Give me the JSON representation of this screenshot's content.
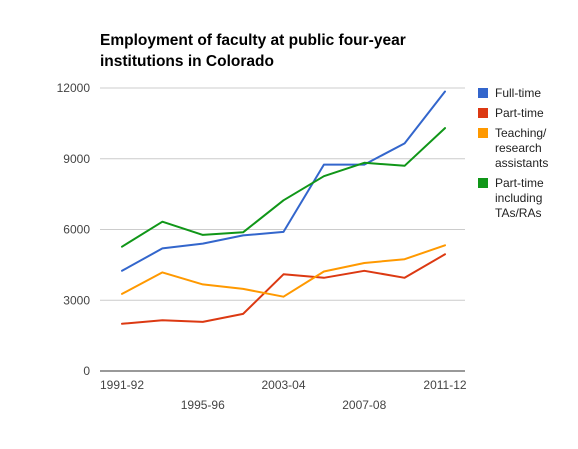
{
  "chart_data": {
    "type": "line",
    "title": "Employment of faculty at public four-year institutions in Colorado",
    "xlabel": "",
    "ylabel": "",
    "ylim": [
      0,
      12000
    ],
    "yticks": [
      "0",
      "3000",
      "6000",
      "9000",
      "12000"
    ],
    "x_tick_labels": [
      "1991-92",
      "1995-96",
      "2003-04",
      "2007-08",
      "2011-12"
    ],
    "x_tick_index": [
      0,
      2,
      4,
      6,
      8
    ],
    "x_tick_row": [
      0,
      1,
      0,
      1,
      0
    ],
    "grid": true,
    "legend_position": "right",
    "series": [
      {
        "name": "Full-time",
        "color": "#3366cc",
        "values": [
          4250,
          5200,
          5400,
          5750,
          5900,
          8750,
          8750,
          9650,
          11850
        ]
      },
      {
        "name": "Part-time",
        "color": "#dc3912",
        "values": [
          2000,
          2150,
          2080,
          2420,
          4100,
          3950,
          4250,
          3950,
          4950
        ]
      },
      {
        "name": "Teaching/\nresearch\nassistants",
        "color": "#ff9900",
        "values": [
          3270,
          4180,
          3670,
          3480,
          3150,
          4220,
          4580,
          4740,
          5330
        ]
      },
      {
        "name": "Part-time\nincluding\nTAs/RAs",
        "color": "#109618",
        "values": [
          5270,
          6330,
          5770,
          5880,
          7240,
          8260,
          8830,
          8700,
          10300
        ]
      }
    ]
  }
}
